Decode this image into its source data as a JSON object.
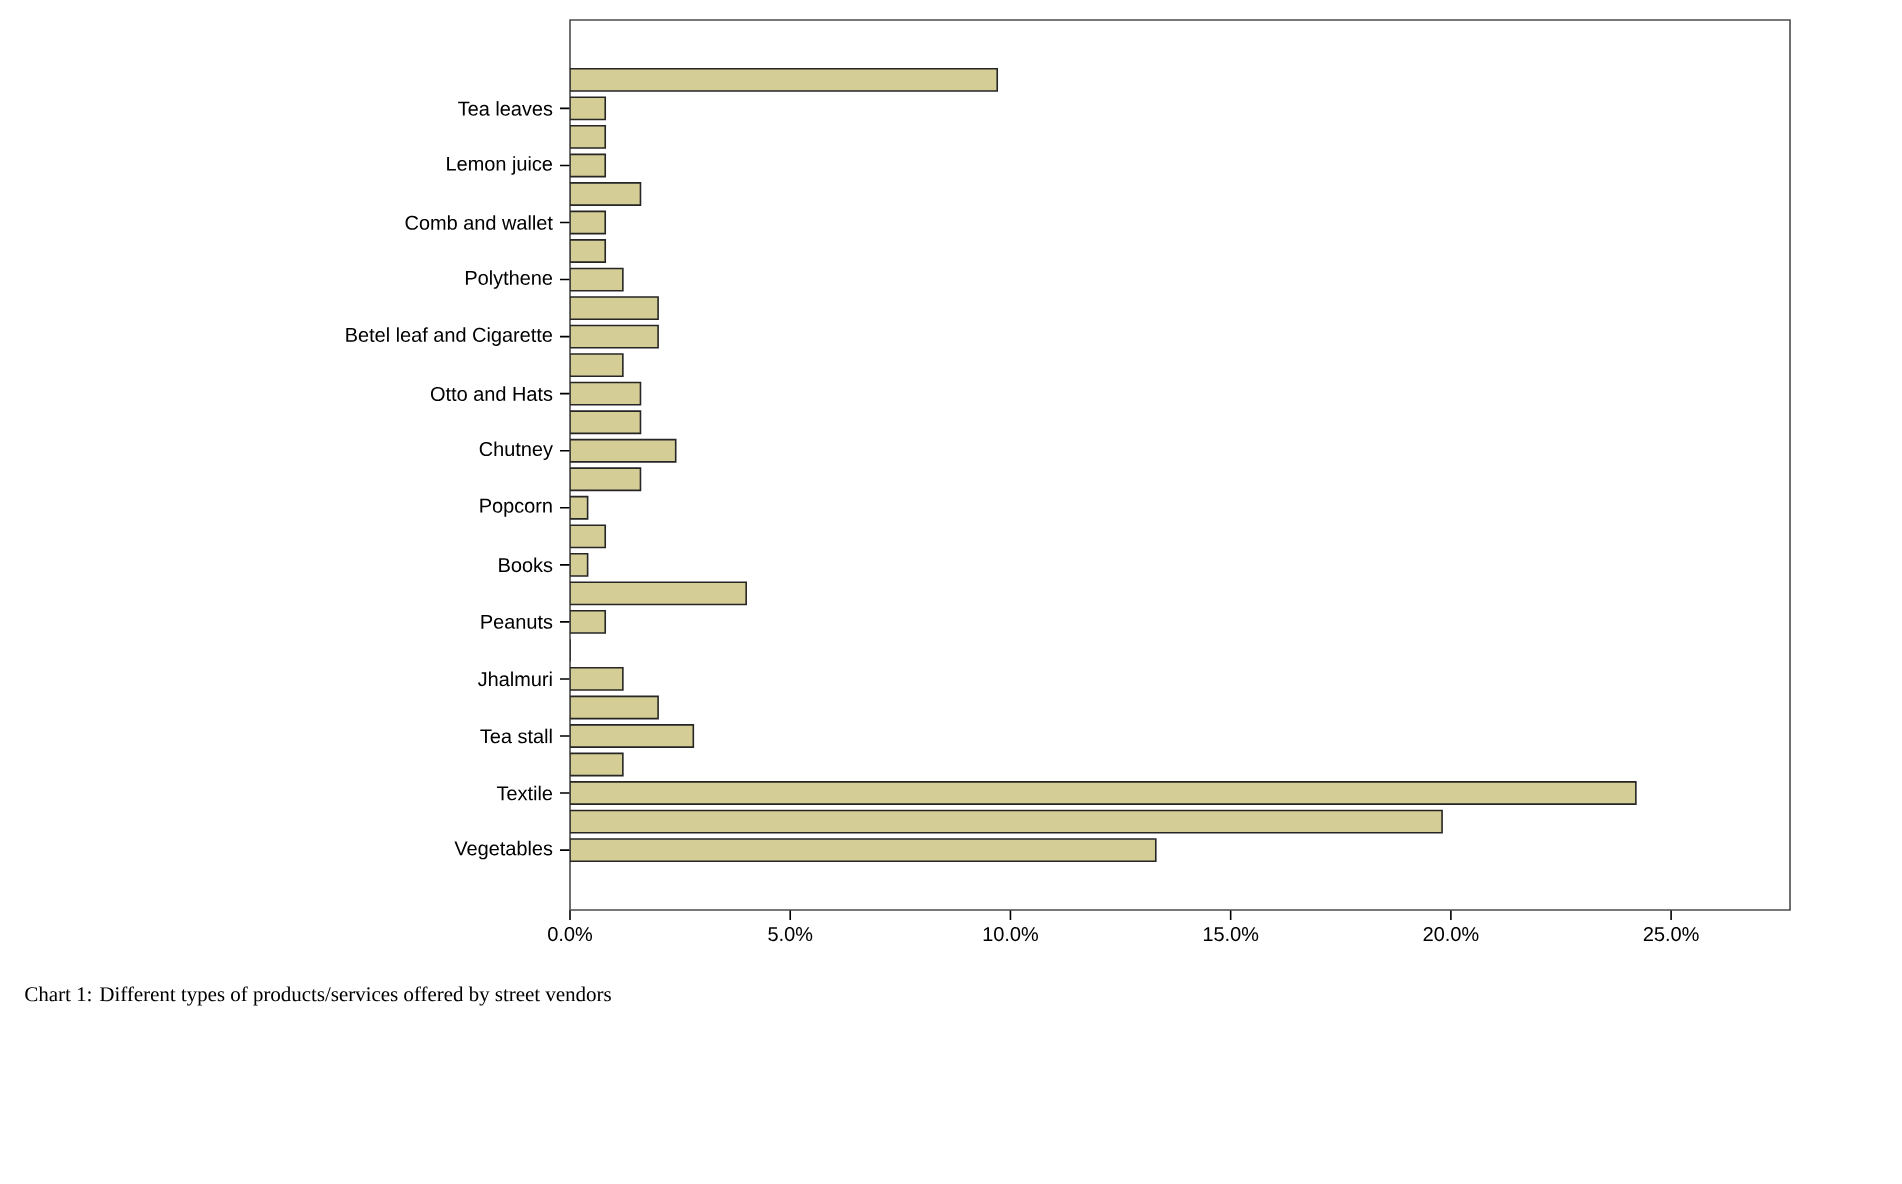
{
  "chart_data": {
    "type": "bar",
    "orientation": "horizontal",
    "categories": [
      null,
      "Tea leaves",
      null,
      "Lemon juice",
      null,
      "Comb and wallet",
      null,
      "Polythene",
      null,
      "Betel leaf and Cigarette",
      null,
      "Otto and Hats",
      null,
      "Chutney",
      null,
      "Popcorn",
      null,
      "Books",
      null,
      "Peanuts",
      null,
      "Jhalmuri",
      null,
      "Tea stall",
      null,
      "Textile",
      null,
      "Vegetables"
    ],
    "values": [
      9.7,
      0.8,
      0.8,
      0.8,
      1.6,
      0.8,
      0.8,
      1.2,
      2.0,
      2.0,
      1.2,
      1.6,
      1.6,
      2.4,
      1.6,
      0.4,
      0.8,
      0.4,
      4.0,
      0.8,
      0,
      1.2,
      2.0,
      2.8,
      1.2,
      24.2,
      19.8,
      13.3
    ],
    "color": "#d4cd96",
    "xlim": [
      0,
      27.7
    ],
    "xticks": [
      {
        "value": 0,
        "label": "0.0%"
      },
      {
        "value": 5,
        "label": "5.0%"
      },
      {
        "value": 10,
        "label": "10.0%"
      },
      {
        "value": 15,
        "label": "15.0%"
      },
      {
        "value": 20,
        "label": "20.0%"
      },
      {
        "value": 25,
        "label": "25.0%"
      }
    ],
    "annotations": [
      "Chart 1: Different types of products/services offered by street vendors"
    ]
  }
}
